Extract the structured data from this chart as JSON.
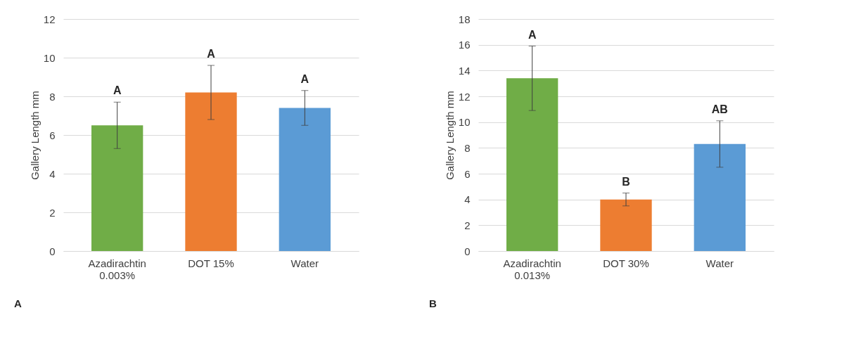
{
  "chart_data": [
    {
      "type": "bar",
      "ylabel": "Gallery Length mm",
      "categories": [
        "Azadirachtin\n0.003%",
        "DOT 15%",
        "Water"
      ],
      "values": [
        6.5,
        8.2,
        7.4
      ],
      "colors": [
        "#70ad47",
        "#ed7d31",
        "#5b9bd5"
      ],
      "errors": [
        1.2,
        1.4,
        0.9
      ],
      "ylim": [
        0,
        12
      ],
      "yticks": [
        0,
        2,
        4,
        6,
        8,
        10,
        12
      ],
      "grid": "y",
      "annotations": [
        "A",
        "A",
        "A",
        "A"
      ]
    },
    {
      "type": "bar",
      "ylabel": "Gallery Length mm",
      "categories": [
        "Azadirachtin\n0.013%",
        "DOT 30%",
        "Water"
      ],
      "values": [
        13.4,
        4.0,
        8.3
      ],
      "colors": [
        "#70ad47",
        "#ed7d31",
        "#5b9bd5"
      ],
      "errors": [
        2.5,
        0.5,
        1.8
      ],
      "ylim": [
        0,
        18
      ],
      "yticks": [
        0,
        2,
        4,
        6,
        8,
        10,
        12,
        14,
        16,
        18
      ],
      "grid": "y",
      "annotations": [
        "A",
        "B",
        "AB",
        "B"
      ]
    }
  ]
}
